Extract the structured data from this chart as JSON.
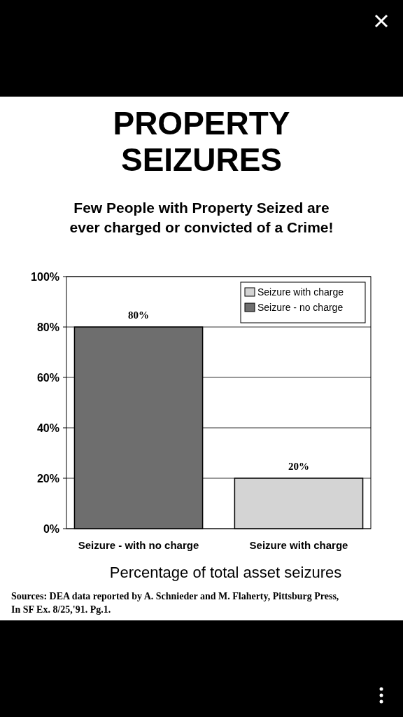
{
  "chart_data": {
    "type": "bar",
    "title": "PROPERTY SEIZURES",
    "subtitle": "Few People with Property Seized are ever charged or convicted of a Crime!",
    "xlabel": "Percentage of total asset seizures",
    "categories": [
      "Seizure - with no charge",
      "Seizure with charge"
    ],
    "series": [
      {
        "name": "Seizure with charge",
        "color": "#d4d4d4",
        "values": [
          null,
          20
        ],
        "value_labels": [
          null,
          "20%"
        ]
      },
      {
        "name": "Seizure - no charge",
        "color": "#6e6e6e",
        "values": [
          80,
          null
        ],
        "value_labels": [
          "80%",
          null
        ]
      }
    ],
    "ylim": [
      0,
      100
    ],
    "yticks": [
      {
        "value": 0,
        "label": "0%"
      },
      {
        "value": 20,
        "label": "20%"
      },
      {
        "value": 40,
        "label": "40%"
      },
      {
        "value": 60,
        "label": "60%"
      },
      {
        "value": 80,
        "label": "80%"
      },
      {
        "value": 100,
        "label": "100%"
      }
    ],
    "grid": "y",
    "legend": "top right",
    "annotations": [
      "Sources: DEA data reported by A. Schnieder and M. Flaherty, Pittsburg Press, In SF Ex. 8/25,'91. Pg.1."
    ]
  }
}
